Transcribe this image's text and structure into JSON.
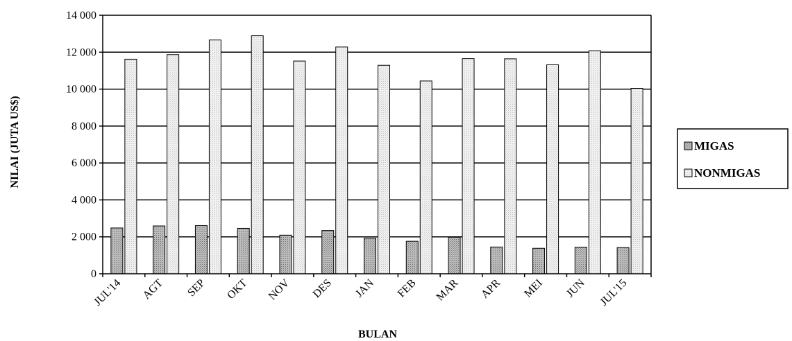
{
  "chart_data": {
    "type": "bar",
    "title": "",
    "xlabel": "BULAN",
    "ylabel": "NILAI (JUTA US$)",
    "ylim": [
      0,
      14000
    ],
    "yticks": [
      0,
      2000,
      4000,
      6000,
      8000,
      10000,
      12000,
      14000
    ],
    "ytick_labels": [
      "0",
      "2 000",
      "4 000",
      "6 000",
      "8 000",
      "10 000",
      "12 000",
      "14 000"
    ],
    "grid": "horizontal",
    "legend_position": "right",
    "categories": [
      "JUL'14",
      "AGT",
      "SEP",
      "OKT",
      "NOV",
      "DES",
      "JAN",
      "FEB",
      "MAR",
      "APR",
      "MEI",
      "JUN",
      "JUL'15"
    ],
    "series": [
      {
        "name": "MIGAS",
        "color": "#a8a8a8",
        "values": [
          2480,
          2590,
          2610,
          2460,
          2090,
          2340,
          1930,
          1760,
          1980,
          1450,
          1380,
          1440,
          1420
        ]
      },
      {
        "name": "NONMIGAS",
        "color": "#e6e6e6",
        "values": [
          11620,
          11870,
          12660,
          12890,
          11520,
          12280,
          11290,
          10440,
          11650,
          11640,
          11320,
          12080,
          10040
        ]
      }
    ]
  }
}
